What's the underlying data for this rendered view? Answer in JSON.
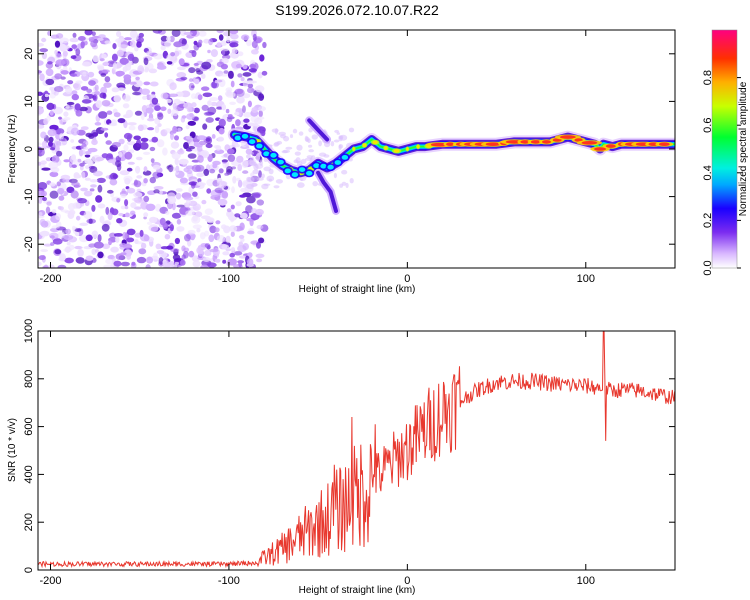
{
  "title": "S199.2026.072.10.07.R22",
  "chart_data": [
    {
      "type": "heatmap",
      "name": "spectrogram",
      "xlabel": "Height of straight line (km)",
      "ylabel": "Frequency (Hz)",
      "xlim": [
        -207,
        150
      ],
      "ylim": [
        -25,
        25
      ],
      "xticks": [
        -200,
        -100,
        0,
        100
      ],
      "yticks": [
        -20,
        -10,
        0,
        10,
        20
      ],
      "noise_region_x": [
        -207,
        -82
      ],
      "ridge": {
        "x": [
          -97,
          -90,
          -85,
          -80,
          -75,
          -70,
          -65,
          -60,
          -55,
          -50,
          -45,
          -40,
          -35,
          -30,
          -25,
          -20,
          -15,
          -10,
          -5,
          0,
          5,
          10,
          20,
          30,
          40,
          50,
          60,
          70,
          80,
          85,
          90,
          95,
          100,
          105,
          108,
          110,
          115,
          120,
          130,
          140,
          150
        ],
        "y": [
          3,
          2.5,
          2,
          0,
          -2,
          -3.5,
          -4.5,
          -5,
          -4.5,
          -3,
          -4,
          -3,
          -1.5,
          0,
          0.5,
          2,
          0.5,
          0,
          -0.5,
          0,
          0.5,
          0.5,
          1,
          1,
          1,
          1,
          1.5,
          1.5,
          1.5,
          2,
          2.5,
          2,
          1.5,
          1,
          0,
          1,
          0.5,
          1,
          1,
          1,
          1
        ]
      },
      "branches": [
        {
          "x": [
            -55,
            -50,
            -45
          ],
          "y": [
            6,
            4,
            2
          ]
        },
        {
          "x": [
            -50,
            -47,
            -43,
            -40
          ],
          "y": [
            -5,
            -7,
            -9,
            -13
          ]
        }
      ],
      "colorbar": {
        "label": "Normalized spectral amplitude",
        "ticks": [
          0.0,
          0.2,
          0.4,
          0.6,
          0.8
        ],
        "tick_labels": [
          "0.0",
          "0.2",
          "0.4",
          "0.6",
          "0.8"
        ],
        "range": [
          0,
          1
        ]
      }
    },
    {
      "type": "line",
      "name": "snr",
      "xlabel": "Height of straight line (km)",
      "ylabel": "SNR (10 * v/v)",
      "xlim": [
        -207,
        150
      ],
      "ylim": [
        0,
        1000
      ],
      "xticks": [
        -200,
        -100,
        0,
        100
      ],
      "yticks": [
        0,
        200,
        400,
        600,
        800,
        1000
      ],
      "color": "#e8382e",
      "envelope": {
        "x": [
          -207,
          -150,
          -100,
          -85,
          -80,
          -70,
          -60,
          -50,
          -40,
          -30,
          -20,
          -10,
          0,
          10,
          20,
          30,
          40,
          50,
          60,
          70,
          80,
          90,
          100,
          105,
          110,
          115,
          120,
          130,
          140,
          150
        ],
        "y": [
          25,
          25,
          25,
          30,
          50,
          90,
          140,
          190,
          240,
          300,
          370,
          440,
          510,
          590,
          660,
          710,
          755,
          785,
          790,
          790,
          780,
          775,
          770,
          765,
          760,
          750,
          755,
          750,
          735,
          720
        ]
      },
      "spikes": [
        {
          "x": 110,
          "y": 1000
        },
        {
          "x": 111,
          "y": 540
        },
        {
          "x": -31,
          "y": 640
        },
        {
          "x": -18,
          "y": 610
        },
        {
          "x": -41,
          "y": 440
        }
      ]
    }
  ]
}
